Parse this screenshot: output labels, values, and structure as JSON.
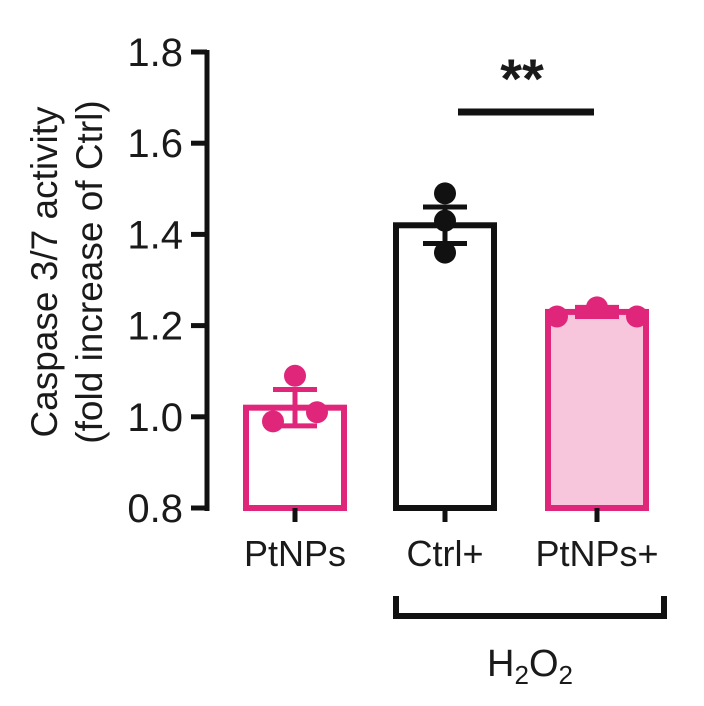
{
  "chart_data": {
    "type": "bar",
    "title": "",
    "ylabel_line1": "Caspase 3/7 activity",
    "ylabel_line2": "(fold increase of Ctrl)",
    "ylim": [
      0.8,
      1.8
    ],
    "yticks": [
      "0.8",
      "1.0",
      "1.2",
      "1.4",
      "1.6",
      "1.8"
    ],
    "ytick_values": [
      0.8,
      1.0,
      1.2,
      1.4,
      1.6,
      1.8
    ],
    "categories": [
      "PtNPs",
      "Ctrl+",
      "PtNPs+"
    ],
    "values": [
      1.02,
      1.42,
      1.23
    ],
    "error": [
      0.04,
      0.04,
      0.01
    ],
    "points": [
      [
        1.09,
        0.99,
        1.01
      ],
      [
        1.49,
        1.43,
        1.36
      ],
      [
        1.24,
        1.22,
        1.22
      ]
    ],
    "bar_edge_colors": [
      "#e0267a",
      "#111111",
      "#e0267a"
    ],
    "bar_fill_colors": [
      "#ffffff",
      "#ffffff",
      "#f7c6dc"
    ],
    "point_colors": [
      "#e0267a",
      "#111111",
      "#e0267a"
    ],
    "significance": {
      "label": "**",
      "from": "Ctrl+",
      "to": "PtNPs+"
    },
    "group_label": {
      "prefix": "H",
      "sub1": "2",
      "mid": "O",
      "sub2": "2",
      "spans": [
        "Ctrl+",
        "PtNPs+"
      ]
    },
    "grid": false,
    "legend": "none"
  }
}
